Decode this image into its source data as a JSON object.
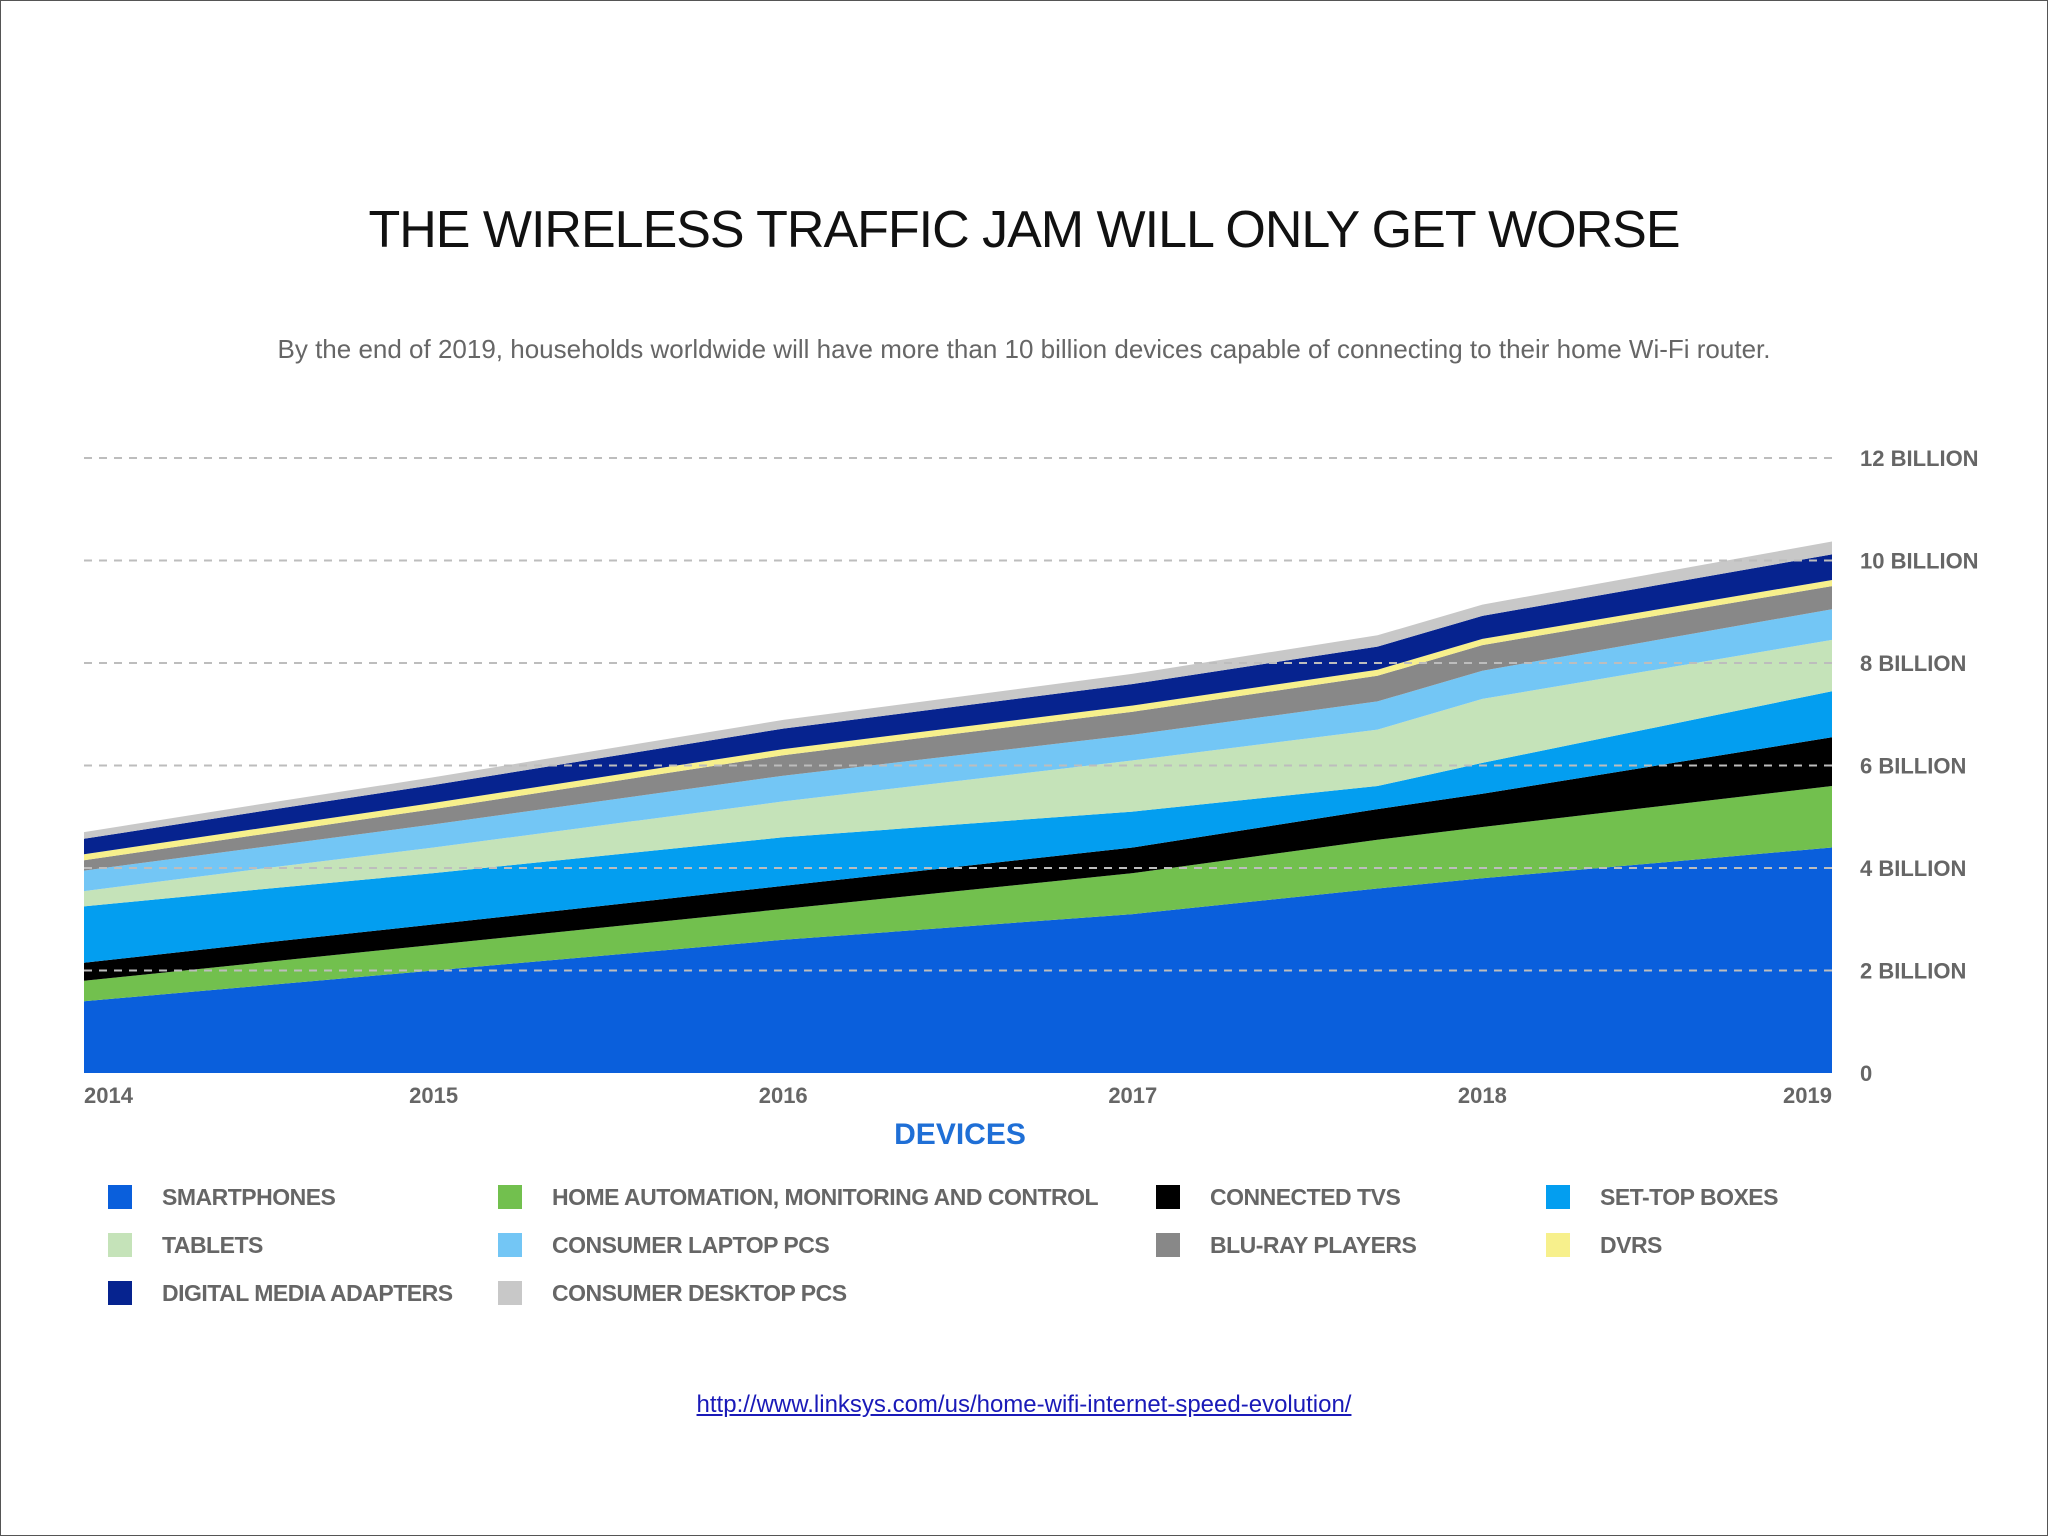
{
  "slide": {
    "title": "THE WIRELESS TRAFFIC JAM WILL ONLY GET WORSE",
    "subtitle": "By the end of 2019, households worldwide will have more than 10 billion devices capable of connecting to their home Wi-Fi router.",
    "source_link": "http://www.linksys.com/us/home-wifi-internet-speed-evolution/"
  },
  "chart_data": {
    "type": "area",
    "stacked": true,
    "title": "THE WIRELESS TRAFFIC JAM WILL ONLY GET WORSE",
    "xlabel": "DEVICES",
    "x": [
      "2014",
      "2014.5",
      "2015",
      "2016",
      "2017",
      "2017.7",
      "2018",
      "2019"
    ],
    "x_ticks": [
      "2014",
      "2015",
      "2016",
      "2017",
      "2018",
      "2019"
    ],
    "y_ticks": [
      "0",
      "2 BILLION",
      "4 BILLION",
      "6 BILLION",
      "8 BILLION",
      "10 BILLION",
      "12 BILLION"
    ],
    "ylim": [
      0,
      12
    ],
    "grid": "dashed-horizontal",
    "legend_position": "bottom",
    "series": [
      {
        "name": "SMARTPHONES",
        "color": "#0a5fdc",
        "values": [
          1.4,
          1.7,
          2.0,
          2.6,
          3.1,
          3.6,
          3.8,
          4.4
        ]
      },
      {
        "name": "HOME AUTOMATION, MONITORING AND CONTROL",
        "color": "#72c04e",
        "values": [
          0.4,
          0.45,
          0.5,
          0.6,
          0.8,
          0.95,
          1.0,
          1.2
        ]
      },
      {
        "name": "CONNECTED TVS",
        "color": "#000000",
        "values": [
          0.35,
          0.38,
          0.4,
          0.45,
          0.5,
          0.6,
          0.65,
          0.95
        ]
      },
      {
        "name": "SET-TOP BOXES",
        "color": "#039ef0",
        "values": [
          1.1,
          1.05,
          1.0,
          0.95,
          0.7,
          0.45,
          0.6,
          0.9
        ]
      },
      {
        "name": "TABLETS",
        "color": "#c5e3b9",
        "values": [
          0.3,
          0.4,
          0.5,
          0.7,
          1.0,
          1.1,
          1.25,
          1.0
        ]
      },
      {
        "name": "CONSUMER LAPTOP PCS",
        "color": "#73c6f5",
        "values": [
          0.4,
          0.42,
          0.45,
          0.5,
          0.5,
          0.55,
          0.55,
          0.6
        ]
      },
      {
        "name": "BLU-RAY PLAYERS",
        "color": "#888888",
        "values": [
          0.2,
          0.25,
          0.3,
          0.4,
          0.45,
          0.5,
          0.5,
          0.45
        ]
      },
      {
        "name": "DVRS",
        "color": "#f7f08c",
        "values": [
          0.12,
          0.12,
          0.12,
          0.12,
          0.12,
          0.12,
          0.12,
          0.12
        ]
      },
      {
        "name": "DIGITAL MEDIA ADAPTERS",
        "color": "#06238f",
        "values": [
          0.3,
          0.33,
          0.35,
          0.4,
          0.42,
          0.45,
          0.45,
          0.5
        ]
      },
      {
        "name": "CONSUMER DESKTOP PCS",
        "color": "#c8c8c8",
        "values": [
          0.13,
          0.14,
          0.15,
          0.17,
          0.2,
          0.22,
          0.22,
          0.25
        ]
      }
    ]
  }
}
